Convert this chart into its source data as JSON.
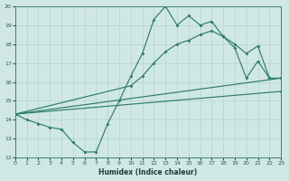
{
  "xlabel": "Humidex (Indice chaleur)",
  "xlim": [
    0,
    23
  ],
  "ylim": [
    12,
    20
  ],
  "xticks": [
    0,
    1,
    2,
    3,
    4,
    5,
    6,
    7,
    8,
    9,
    10,
    11,
    12,
    13,
    14,
    15,
    16,
    17,
    18,
    19,
    20,
    21,
    22,
    23
  ],
  "yticks": [
    12,
    13,
    14,
    15,
    16,
    17,
    18,
    19,
    20
  ],
  "bg_color": "#d0e8e4",
  "line_color": "#2e7b6e",
  "grid_color": "#b2d4cf",
  "series": [
    {
      "x": [
        0,
        1,
        2,
        3,
        4,
        5,
        6,
        7,
        8,
        9,
        10,
        11,
        12,
        13,
        14,
        15,
        16,
        17,
        18,
        19,
        20,
        21,
        22
      ],
      "y": [
        14.3,
        14.0,
        13.8,
        13.6,
        13.5,
        12.8,
        12.3,
        12.3,
        13.8,
        15.0,
        16.3,
        17.5,
        19.3,
        20.0,
        19.0,
        19.5,
        19.0,
        19.2,
        18.4,
        17.8,
        16.2,
        17.1,
        16.2
      ]
    },
    {
      "x": [
        0,
        10,
        11,
        12,
        13,
        14,
        15,
        16,
        17,
        18,
        19,
        20,
        21,
        22,
        23
      ],
      "y": [
        14.3,
        15.8,
        16.3,
        17.0,
        17.6,
        18.0,
        18.2,
        18.5,
        18.7,
        18.4,
        18.0,
        17.5,
        17.9,
        16.2,
        16.2
      ]
    },
    {
      "x": [
        0,
        23
      ],
      "y": [
        14.3,
        16.2
      ]
    },
    {
      "x": [
        0,
        23
      ],
      "y": [
        14.3,
        15.5
      ]
    }
  ]
}
